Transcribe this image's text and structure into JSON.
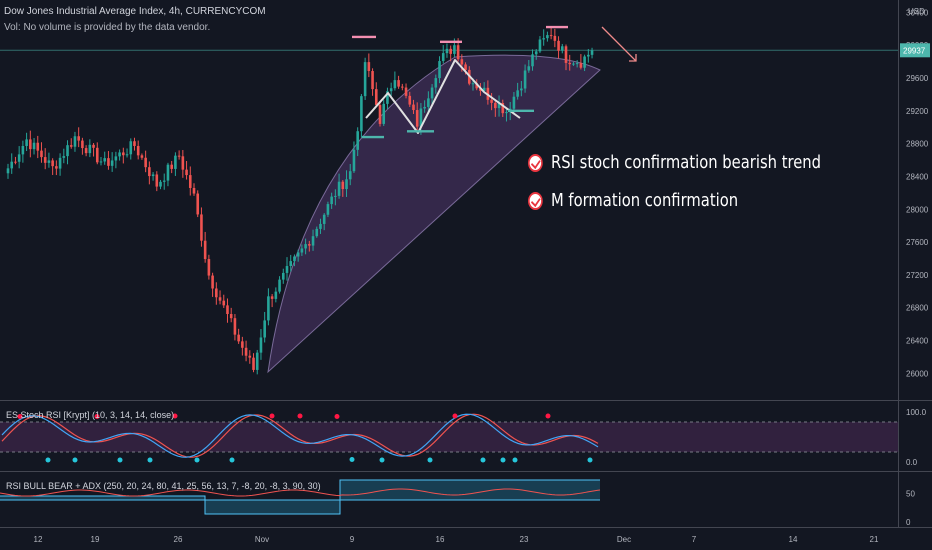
{
  "header": {
    "symbol_line": "Dow Jones Industrial Average Index, 4h, CURRENCYCOM",
    "volume_line": "Vol: No volume is provided by the data vendor."
  },
  "currency": "USD",
  "annotations": [
    "RSI stoch confirmation bearish trend",
    "M formation confirmation"
  ],
  "indicators": {
    "stoch_label": "ES Stoch RSI [Krypt] (10, 3, 14, 14, close)",
    "stoch_levels": [
      "100.0",
      "0.0"
    ],
    "rsi_label": "RSI BULL BEAR + ADX (250, 20, 24, 80, 41, 25, 56, 13, 7, -8, 20, -8, 3, 90, 30)",
    "rsi_levels": [
      "50",
      "0"
    ]
  },
  "colors": {
    "background": "#131722",
    "bull": "#26a69a",
    "bear": "#ef5350",
    "arc_fill": "#7b4fa0",
    "stoch_k": "#42a5f5",
    "stoch_d": "#ef5350",
    "price_tag": "#4db6ac"
  },
  "chart_data": {
    "type": "candlestick",
    "title": "Dow Jones Industrial Average Index, 4h, CURRENCYCOM",
    "ylabel": "USD",
    "ylim": [
      25700,
      30550
    ],
    "y_ticks": [
      26000,
      26400,
      26800,
      27200,
      27600,
      28000,
      28400,
      28800,
      29200,
      29600,
      30000,
      30400
    ],
    "y_tick_labels": [
      "26000",
      "26400",
      "26800",
      "27200",
      "27600",
      "28000",
      "28400",
      "28800",
      "29200",
      "29600",
      "30000",
      "30400"
    ],
    "x_ticks": [
      "12",
      "19",
      "26",
      "Nov",
      "9",
      "16",
      "23",
      "Dec",
      "7",
      "14",
      "21"
    ],
    "last_price": 29937,
    "last_price_label": "29937",
    "anchors": [
      {
        "bar": 0,
        "close": 28500
      },
      {
        "bar": 5,
        "close": 28850
      },
      {
        "bar": 12,
        "close": 28500
      },
      {
        "bar": 18,
        "close": 28880
      },
      {
        "bar": 26,
        "close": 28550
      },
      {
        "bar": 34,
        "close": 28780
      },
      {
        "bar": 40,
        "close": 28300
      },
      {
        "bar": 46,
        "close": 28650
      },
      {
        "bar": 50,
        "close": 28150
      },
      {
        "bar": 54,
        "close": 27200
      },
      {
        "bar": 58,
        "close": 26800
      },
      {
        "bar": 62,
        "close": 26400
      },
      {
        "bar": 66,
        "close": 26050
      },
      {
        "bar": 70,
        "close": 26900
      },
      {
        "bar": 76,
        "close": 27300
      },
      {
        "bar": 82,
        "close": 27700
      },
      {
        "bar": 88,
        "close": 28200
      },
      {
        "bar": 92,
        "close": 28450
      },
      {
        "bar": 95,
        "close": 29300
      },
      {
        "bar": 96,
        "close": 29800
      },
      {
        "bar": 100,
        "close": 29100
      },
      {
        "bar": 104,
        "close": 29650
      },
      {
        "bar": 110,
        "close": 29050
      },
      {
        "bar": 116,
        "close": 29800
      },
      {
        "bar": 120,
        "close": 30000
      },
      {
        "bar": 124,
        "close": 29600
      },
      {
        "bar": 130,
        "close": 29350
      },
      {
        "bar": 134,
        "close": 29200
      },
      {
        "bar": 138,
        "close": 29550
      },
      {
        "bar": 142,
        "close": 29950
      },
      {
        "bar": 146,
        "close": 30150
      },
      {
        "bar": 150,
        "close": 29850
      },
      {
        "bar": 154,
        "close": 29800
      },
      {
        "bar": 157,
        "close": 29937
      }
    ],
    "levels": [
      {
        "name": "peak-1",
        "price": 30100
      },
      {
        "name": "peak-2",
        "price": 30040
      },
      {
        "name": "peak-3",
        "price": 30220
      },
      {
        "name": "trough-1",
        "price": 28880
      },
      {
        "name": "trough-2",
        "price": 28950
      },
      {
        "name": "trough-3",
        "price": 29200
      }
    ]
  }
}
